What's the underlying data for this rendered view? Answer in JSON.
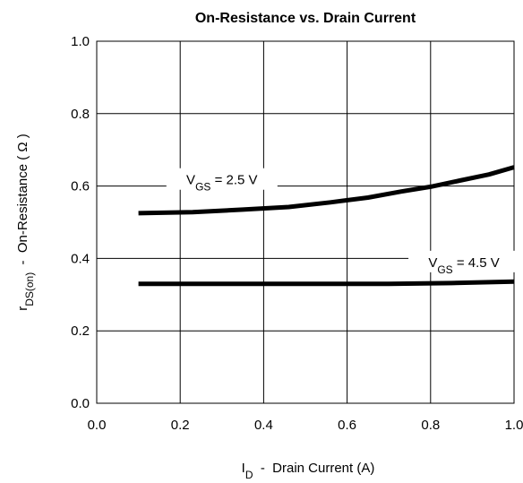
{
  "chart_data": {
    "type": "line",
    "title": "On-Resistance vs. Drain Current",
    "xlabel": {
      "main": "I",
      "sub": "D",
      "rest": "  -  Drain Current (A)"
    },
    "ylabel": {
      "main": "r",
      "sub": "DS(on)",
      "rest": "  -  On-Resistance ( Ω )"
    },
    "xlim": [
      0.0,
      1.0
    ],
    "ylim": [
      0.0,
      1.0
    ],
    "xticks": [
      "0.0",
      "0.2",
      "0.4",
      "0.6",
      "0.8",
      "1.0"
    ],
    "yticks": [
      "0.0",
      "0.2",
      "0.4",
      "0.6",
      "0.8",
      "1.0"
    ],
    "grid": true,
    "series": [
      {
        "name": "VGS = 2.5 V",
        "label_main": "V",
        "label_sub": "GS",
        "label_rest": " = 2.5 V",
        "x": [
          0.1,
          0.23,
          0.35,
          0.46,
          0.56,
          0.65,
          0.73,
          0.8,
          0.87,
          0.94,
          1.0
        ],
        "y": [
          0.525,
          0.528,
          0.535,
          0.542,
          0.555,
          0.568,
          0.585,
          0.598,
          0.615,
          0.632,
          0.652
        ]
      },
      {
        "name": "VGS = 4.5 V",
        "label_main": "V",
        "label_sub": "GS",
        "label_rest": " = 4.5 V",
        "x": [
          0.1,
          0.3,
          0.5,
          0.7,
          0.85,
          1.0
        ],
        "y": [
          0.33,
          0.33,
          0.33,
          0.33,
          0.332,
          0.336
        ]
      }
    ]
  }
}
